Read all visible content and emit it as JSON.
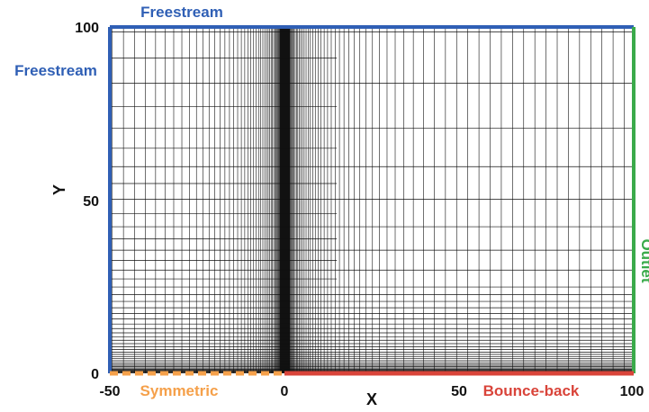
{
  "axes": {
    "xlabel": "X",
    "ylabel": "Y",
    "x_ticks": [
      {
        "value": -50,
        "label": "-50"
      },
      {
        "value": 0,
        "label": "0"
      },
      {
        "value": 50,
        "label": "50"
      },
      {
        "value": 100,
        "label": "100"
      }
    ],
    "y_ticks": [
      {
        "value": 0,
        "label": "0"
      },
      {
        "value": 50,
        "label": "50"
      },
      {
        "value": 100,
        "label": "100"
      }
    ],
    "xlim": [
      -50,
      100
    ],
    "ylim": [
      0,
      100
    ]
  },
  "boundaries": {
    "top": {
      "label": "Freestream",
      "color": "#2f5fb5"
    },
    "left": {
      "label": "Freestream",
      "color": "#2f5fb5"
    },
    "right": {
      "label": "Outlet",
      "color": "#3aaa4a"
    },
    "bottom_left": {
      "label": "Symmetric",
      "color": "#f5a04a"
    },
    "bottom_right": {
      "label": "Bounce-back",
      "color": "#d9443a"
    }
  },
  "mesh": {
    "line_color": "#111111",
    "refinement_x": 0,
    "refinement_y": 0,
    "level_change_x": 15
  }
}
